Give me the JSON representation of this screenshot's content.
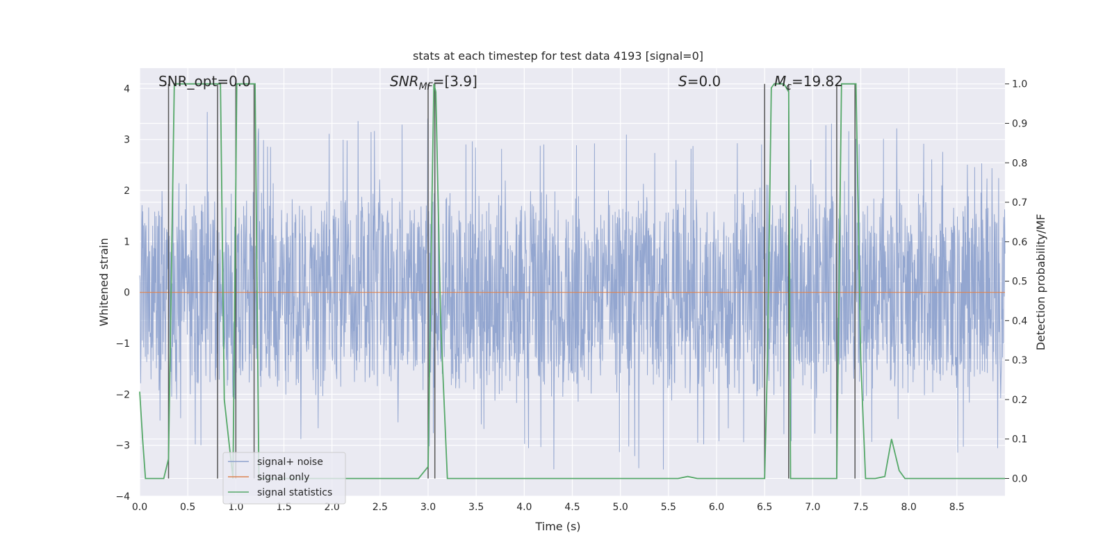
{
  "chart_data": {
    "type": "line",
    "title": "stats at each timestep for test data 4193 [signal=0]",
    "xlabel": "Time (s)",
    "ylabel": "Whitened strain",
    "y2label": "Detection probability/MF",
    "xlim": [
      0,
      9
    ],
    "ylim": [
      -4,
      4.4
    ],
    "y2lim": [
      -0.045,
      1.04
    ],
    "grid": true,
    "legend_position": "lower-left",
    "x_ticks": [
      "0.0",
      "0.5",
      "1.0",
      "1.5",
      "2.0",
      "2.5",
      "3.0",
      "3.5",
      "4.0",
      "4.5",
      "5.0",
      "5.5",
      "6.0",
      "6.5",
      "7.0",
      "7.5",
      "8.0",
      "8.5"
    ],
    "x_tick_values": [
      0.0,
      0.5,
      1.0,
      1.5,
      2.0,
      2.5,
      3.0,
      3.5,
      4.0,
      4.5,
      5.0,
      5.5,
      6.0,
      6.5,
      7.0,
      7.5,
      8.0,
      8.5
    ],
    "y_ticks": [
      "4",
      "3",
      "2",
      "1",
      "0",
      "−1",
      "−2",
      "−3",
      "−4"
    ],
    "y_tick_values": [
      4,
      3,
      2,
      1,
      0,
      -1,
      -2,
      -3,
      -4
    ],
    "y2_ticks": [
      "1.0",
      "0.9",
      "0.8",
      "0.7",
      "0.6",
      "0.5",
      "0.4",
      "0.3",
      "0.2",
      "0.1",
      "0.0"
    ],
    "y2_tick_values": [
      1.0,
      0.9,
      0.8,
      0.7,
      0.6,
      0.5,
      0.4,
      0.3,
      0.2,
      0.1,
      0.0
    ],
    "annotations": [
      "SNR_opt=0.0",
      "SNR",
      "MF",
      "=[3.9]",
      "S",
      "=0.0",
      "M",
      "c",
      "=19.82"
    ],
    "colors": {
      "signal_noise": "#8ea2cd",
      "signal_only": "#dd8452",
      "signal_statistics": "#55a868",
      "markers": "#555555",
      "background": "#eaeaf2",
      "grid": "#ffffff"
    },
    "series": [
      {
        "name": "signal+ noise",
        "role": "noise",
        "envelope_high": [
          [
            0.0,
            2.4
          ],
          [
            0.05,
            3.55
          ],
          [
            0.35,
            3.55
          ],
          [
            0.45,
            4.0
          ],
          [
            1.0,
            3.2
          ],
          [
            1.5,
            3.3
          ],
          [
            2.0,
            3.35
          ],
          [
            2.25,
            3.5
          ],
          [
            2.5,
            3.2
          ],
          [
            2.85,
            3.4
          ],
          [
            3.05,
            3.5
          ],
          [
            3.35,
            3.4
          ],
          [
            3.55,
            3.25
          ],
          [
            3.75,
            3.1
          ],
          [
            4.3,
            3.1
          ],
          [
            4.5,
            3.3
          ],
          [
            5.0,
            3.1
          ],
          [
            5.35,
            3.1
          ],
          [
            5.75,
            2.9
          ],
          [
            6.05,
            3.0
          ],
          [
            6.35,
            2.9
          ],
          [
            6.55,
            3.5
          ],
          [
            6.7,
            3.3
          ],
          [
            7.0,
            2.9
          ],
          [
            7.05,
            3.6
          ],
          [
            7.45,
            3.25
          ],
          [
            7.95,
            3.3
          ],
          [
            8.3,
            2.85
          ],
          [
            8.85,
            2.5
          ],
          [
            9.0,
            2.5
          ]
        ],
        "envelope_low": [
          [
            0.0,
            -1.9
          ],
          [
            0.1,
            -2.4
          ],
          [
            0.5,
            -2.95
          ],
          [
            0.8,
            -3.1
          ],
          [
            1.0,
            -3.0
          ],
          [
            1.5,
            -3.15
          ],
          [
            2.0,
            -3.1
          ],
          [
            2.5,
            -2.85
          ],
          [
            2.95,
            -3.2
          ],
          [
            3.5,
            -2.9
          ],
          [
            3.8,
            -3.15
          ],
          [
            4.5,
            -3.6
          ],
          [
            5.0,
            -3.5
          ],
          [
            5.5,
            -3.6
          ],
          [
            5.9,
            -3.0
          ],
          [
            6.5,
            -3.0
          ],
          [
            7.0,
            -3.25
          ],
          [
            7.5,
            -3.0
          ],
          [
            8.0,
            -2.9
          ],
          [
            8.7,
            -3.3
          ],
          [
            9.0,
            -3.0
          ]
        ]
      },
      {
        "name": "signal only",
        "x": [
          0,
          9
        ],
        "y": [
          0,
          0
        ]
      },
      {
        "name": "signal statistics",
        "axis": "right",
        "x": [
          0.0,
          0.03,
          0.06,
          0.25,
          0.3,
          0.36,
          0.4,
          0.8,
          0.84,
          0.88,
          0.97,
          1.01,
          1.05,
          1.08,
          1.2,
          1.24,
          1.28,
          2.9,
          3.0,
          3.04,
          3.06,
          3.08,
          3.13,
          3.2,
          5.6,
          5.7,
          5.8,
          6.5,
          6.53,
          6.57,
          6.6,
          6.7,
          6.75,
          6.77,
          6.85,
          7.2,
          7.25,
          7.3,
          7.33,
          7.45,
          7.5,
          7.55,
          7.65,
          7.75,
          7.82,
          7.9,
          7.96,
          8.5,
          9.0
        ],
        "y": [
          0.22,
          0.1,
          0.0,
          0.0,
          0.05,
          1.0,
          1.0,
          1.0,
          1.0,
          0.2,
          0.0,
          1.0,
          1.0,
          1.0,
          1.0,
          0.0,
          0.0,
          0.0,
          0.03,
          0.7,
          1.0,
          0.98,
          0.4,
          0.0,
          0.0,
          0.005,
          0.0,
          0.0,
          0.3,
          0.99,
          1.0,
          1.0,
          0.98,
          0.0,
          0.0,
          0.0,
          0.0,
          1.0,
          1.0,
          1.0,
          0.3,
          0.0,
          0.0,
          0.005,
          0.1,
          0.02,
          0.0,
          0.0,
          0.0
        ]
      }
    ],
    "marker_lines_x": [
      0.3,
      0.81,
      1.0,
      1.19,
      3.0,
      3.07,
      6.5,
      6.75,
      7.25,
      7.44
    ]
  }
}
